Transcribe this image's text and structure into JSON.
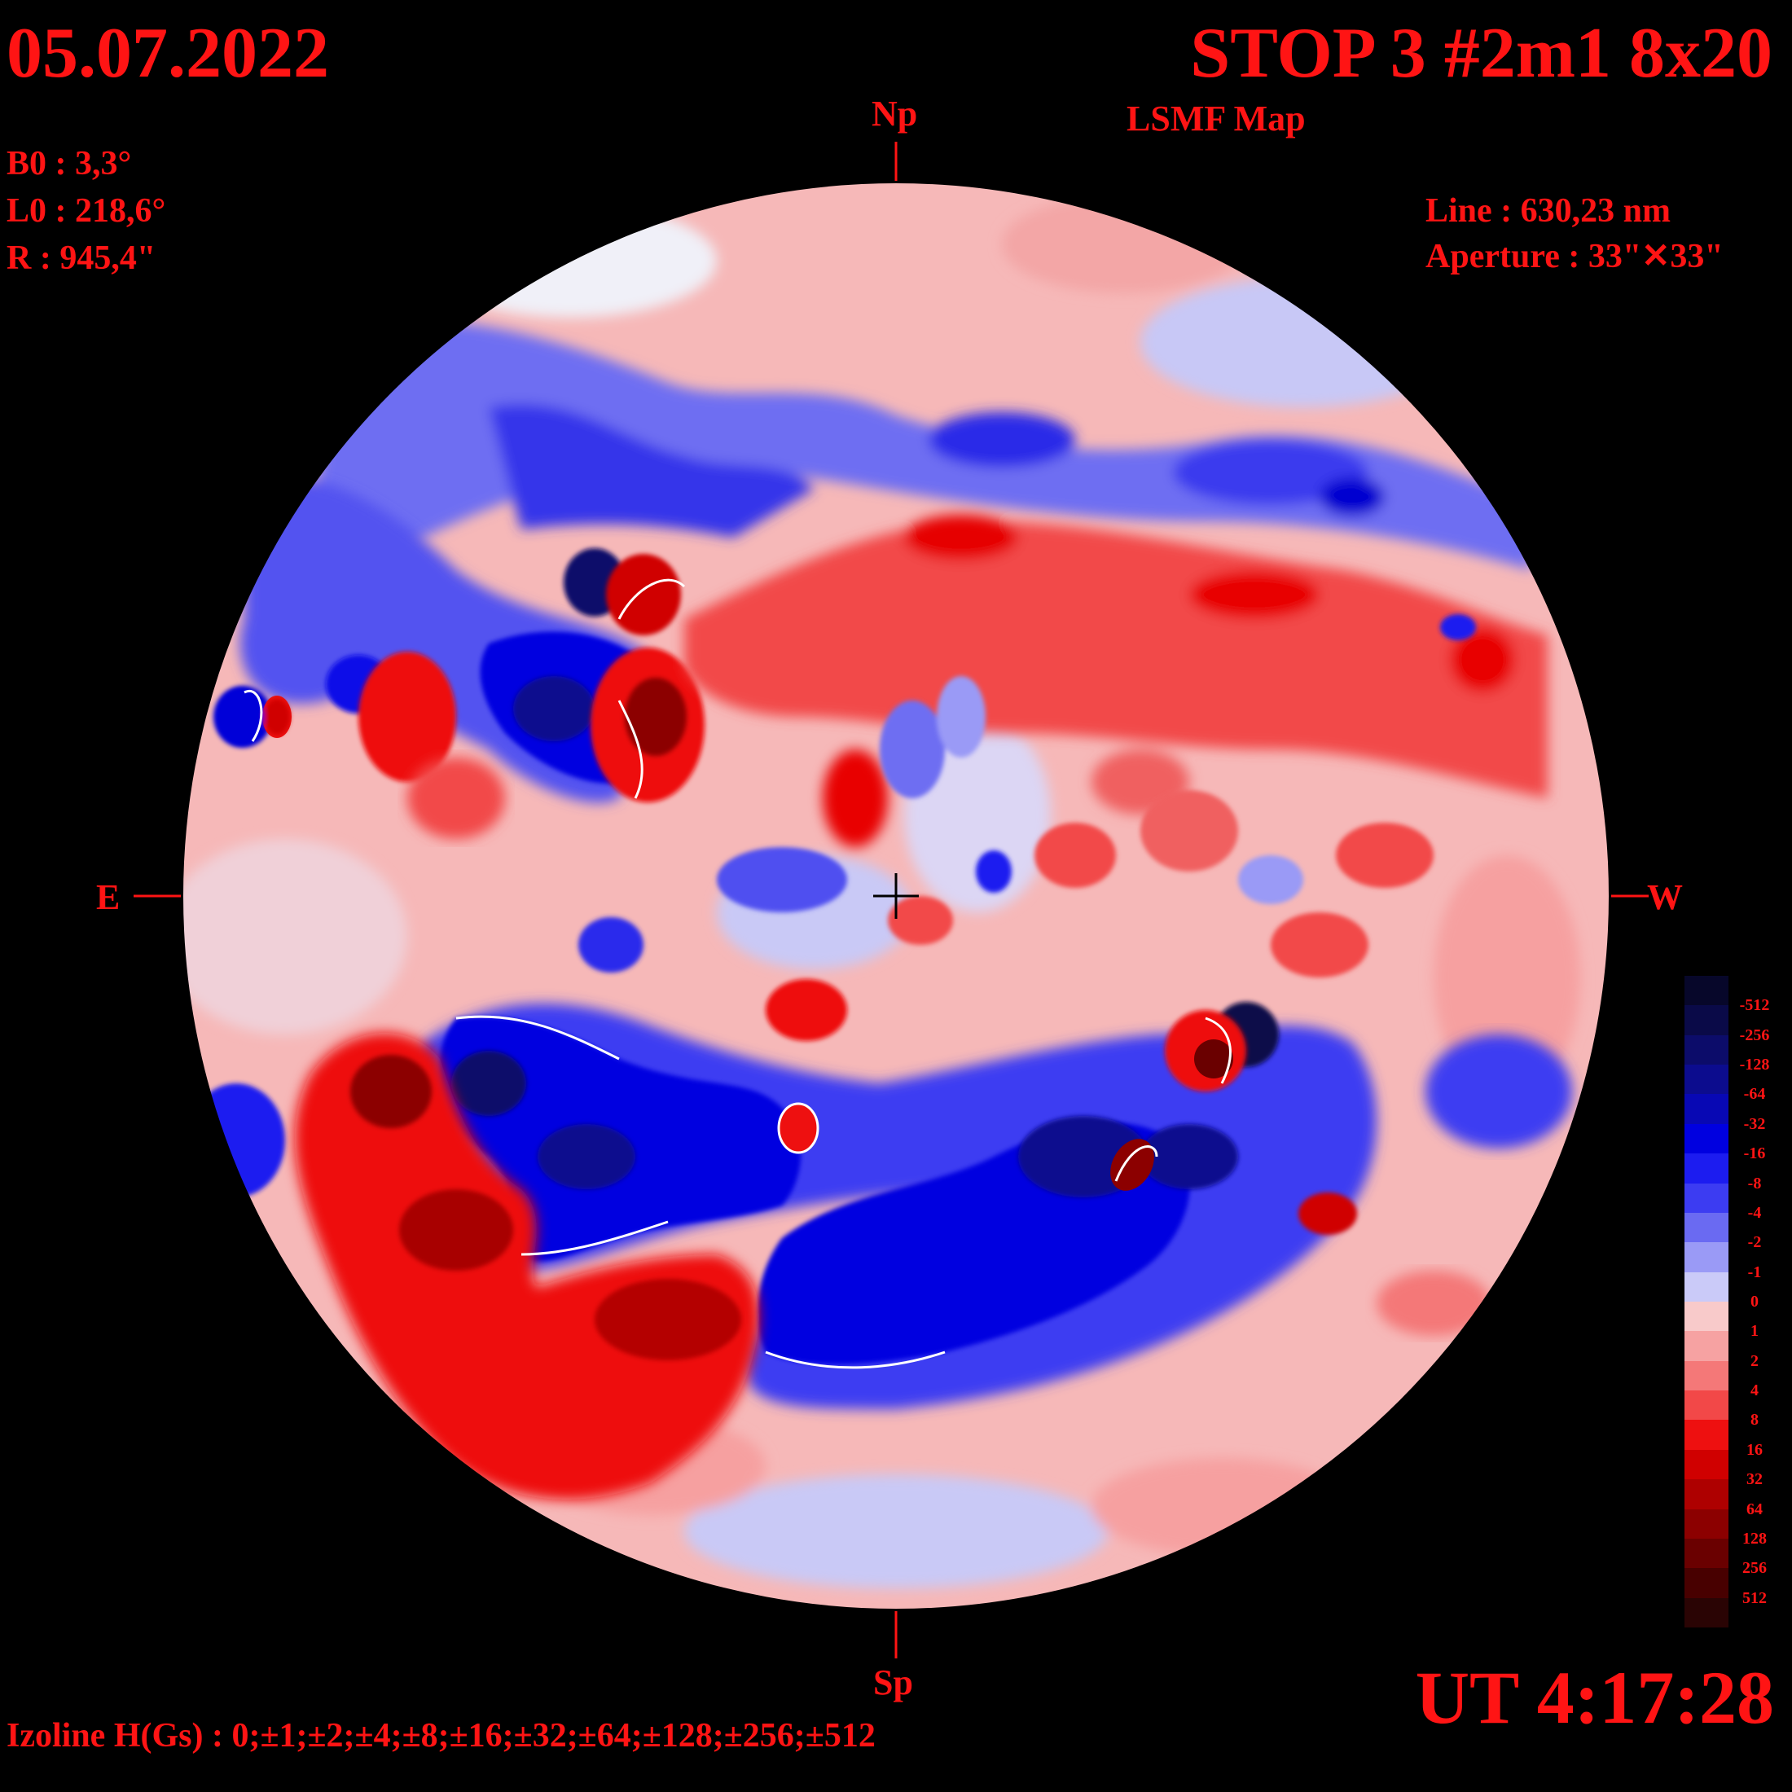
{
  "header": {
    "date": "05.07.2022",
    "title": "STOP 3 #2m1 8x20",
    "subtitle": "LSMF  Map"
  },
  "params": {
    "b0": "B0 : 3,3°",
    "l0": "L0 : 218,6°",
    "r": "R  : 945,4\"",
    "line": "Line :  630,23 nm",
    "aperture": "Aperture : 33\"✕33\""
  },
  "compass": {
    "north": "Np",
    "south": "Sp",
    "east": "E",
    "west": "W"
  },
  "footer": {
    "ut": "UT 4:17:28",
    "izoline": "Izoline H(Gs) : 0;±1;±2;±4;±8;±16;±32;±64;±128;±256;±512"
  },
  "scale": {
    "labels": [
      "-512",
      "-256",
      "-128",
      "-64",
      "-32",
      "-16",
      "-8",
      "-4",
      "-2",
      "-1",
      "0",
      "1",
      "2",
      "4",
      "8",
      "16",
      "32",
      "64",
      "128",
      "256",
      "512"
    ],
    "colors": [
      "#07072a",
      "#0a0a48",
      "#0c0c6a",
      "#0c0c8e",
      "#0808b4",
      "#0000e0",
      "#1c1cf0",
      "#3c3cf2",
      "#6a6af2",
      "#9a9af6",
      "#cacaf8",
      "#f8caca",
      "#f6a2a2",
      "#f47878",
      "#f24848",
      "#ee1010",
      "#d00000",
      "#ae0000",
      "#8c0000",
      "#6a0000",
      "#480000",
      "#2a0404"
    ]
  },
  "map": {
    "disk_background": "#f6b8b8",
    "blue_regions": [
      {
        "center": "south-center",
        "polarity": "negative",
        "strength": "strong"
      },
      {
        "center": "south-east",
        "polarity": "negative",
        "strength": "strong"
      },
      {
        "center": "north-east",
        "polarity": "negative",
        "strength": "moderate"
      },
      {
        "center": "north",
        "polarity": "negative",
        "strength": "weak"
      },
      {
        "center": "east-limb",
        "polarity": "negative",
        "strength": "moderate"
      }
    ],
    "red_regions": [
      {
        "center": "south-west",
        "polarity": "positive",
        "strength": "strong"
      },
      {
        "center": "north-center",
        "polarity": "positive",
        "strength": "moderate"
      },
      {
        "center": "west",
        "polarity": "positive",
        "strength": "moderate"
      }
    ]
  }
}
